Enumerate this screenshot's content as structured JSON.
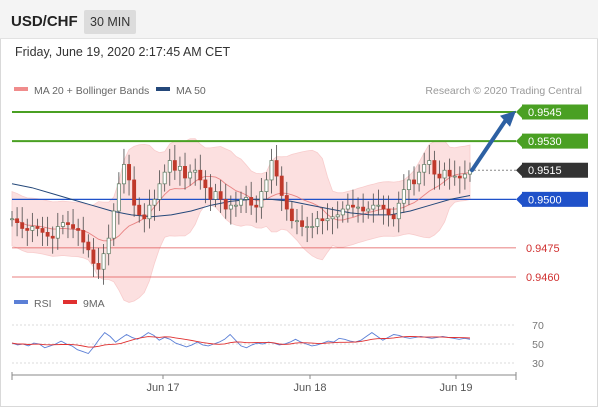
{
  "header": {
    "symbol": "USD/CHF",
    "timeframe": "30 MIN",
    "datetime": "Friday, June 19, 2020 2:17:45 AM CET"
  },
  "legend": {
    "ma20": "MA 20 + Bollinger Bands",
    "ma50": "MA 50",
    "copyright": "Research © 2020 Trading Central",
    "rsi": "RSI",
    "rsi_ma": "9MA"
  },
  "colors": {
    "green_level": "#4aa023",
    "blue_level": "#1f51c9",
    "red_level": "#e05555",
    "current_price": "#333333",
    "candle_up": "#6f8f74",
    "candle_down": "#c0392b",
    "bollinger": "#fbd6d6",
    "ma20": "#e36b6b",
    "ma50": "#24487a",
    "arrow": "#2d60a3",
    "rsi_line": "#5b7fd6",
    "rsi_ma_line": "#e03030"
  },
  "chart_data": {
    "type": "candlestick",
    "ylim": [
      0.945,
      0.956
    ],
    "x_ticks": [
      "Jun 17",
      "Jun 18",
      "Jun 19"
    ],
    "levels": [
      {
        "label": "0.9545",
        "value": 0.9545,
        "kind": "resistance"
      },
      {
        "label": "0.9530",
        "value": 0.953,
        "kind": "resistance"
      },
      {
        "label": "0.9515",
        "value": 0.9515,
        "kind": "current"
      },
      {
        "label": "0.9500",
        "value": 0.95,
        "kind": "pivot"
      },
      {
        "label": "0.9475",
        "value": 0.9475,
        "kind": "support"
      },
      {
        "label": "0.9460",
        "value": 0.946,
        "kind": "support"
      }
    ],
    "price_series": [
      0.949,
      0.9488,
      0.9485,
      0.9484,
      0.9486,
      0.9485,
      0.9483,
      0.9481,
      0.948,
      0.9486,
      0.9488,
      0.9487,
      0.9485,
      0.9484,
      0.9478,
      0.9474,
      0.9467,
      0.9464,
      0.9472,
      0.948,
      0.9494,
      0.9508,
      0.9518,
      0.951,
      0.9497,
      0.9492,
      0.949,
      0.9497,
      0.95,
      0.9508,
      0.9514,
      0.952,
      0.9515,
      0.9517,
      0.9511,
      0.9514,
      0.9515,
      0.951,
      0.9506,
      0.95,
      0.9504,
      0.95,
      0.9495,
      0.9497,
      0.9497,
      0.95,
      0.9501,
      0.9497,
      0.9496,
      0.9504,
      0.951,
      0.952,
      0.9512,
      0.9502,
      0.9495,
      0.9489,
      0.9489,
      0.9486,
      0.9486,
      0.9486,
      0.949,
      0.9489,
      0.949,
      0.9491,
      0.9492,
      0.9495,
      0.9497,
      0.9496,
      0.9496,
      0.9494,
      0.9495,
      0.9497,
      0.9497,
      0.9495,
      0.9492,
      0.949,
      0.9498,
      0.9505,
      0.951,
      0.9508,
      0.9514,
      0.9518,
      0.952,
      0.9513,
      0.9511,
      0.9515,
      0.9512,
      0.9512,
      0.9511,
      0.9513,
      0.9515
    ],
    "ma50_series": [
      0.9508,
      0.9506,
      0.9503,
      0.95,
      0.9497,
      0.9494,
      0.9492,
      0.9491,
      0.9492,
      0.9494,
      0.9497,
      0.9499,
      0.95,
      0.95,
      0.9499,
      0.9497,
      0.9495,
      0.9493,
      0.9492,
      0.9492,
      0.9494,
      0.9497,
      0.95,
      0.9502
    ],
    "rsi_axis": [
      70,
      50,
      30
    ],
    "rsi_series": [
      51,
      49,
      50,
      48,
      51,
      50,
      46,
      48,
      50,
      53,
      50,
      48,
      44,
      42,
      40,
      47,
      55,
      62,
      58,
      52,
      56,
      60,
      57,
      55,
      58,
      62,
      59,
      54,
      57,
      55,
      51,
      49,
      47,
      49,
      52,
      49,
      48,
      50,
      52,
      55,
      60,
      54,
      48,
      46,
      49,
      51,
      50,
      52,
      51,
      49,
      50,
      52,
      55,
      52,
      50,
      48,
      49,
      51,
      53,
      52,
      56,
      55,
      53,
      52,
      54,
      58,
      62,
      58,
      54,
      57,
      60,
      59,
      57,
      56,
      57,
      58,
      57,
      56,
      57,
      58,
      57,
      56,
      55,
      56,
      55
    ]
  }
}
